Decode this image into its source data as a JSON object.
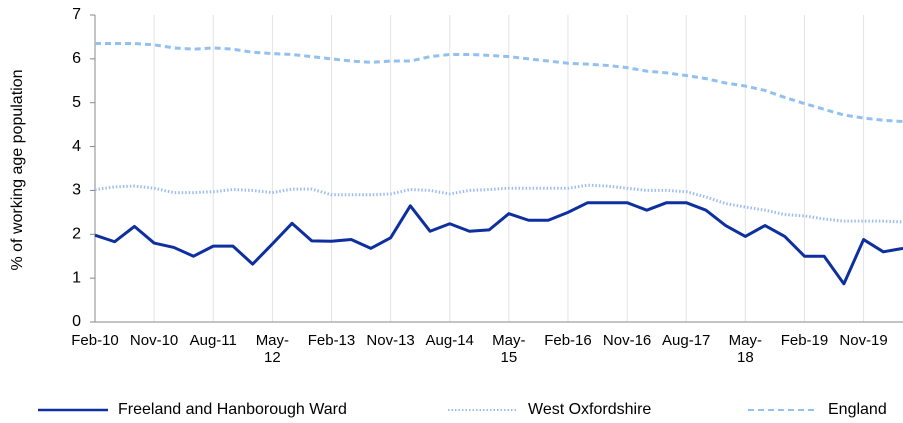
{
  "chart_data": {
    "type": "line",
    "y_label": "% of working age population",
    "categories": [
      "Feb-10",
      null,
      null,
      "Nov-10",
      null,
      null,
      "Aug-11",
      null,
      null,
      "May-\n12",
      null,
      null,
      "Feb-13",
      null,
      null,
      "Nov-13",
      null,
      null,
      "Aug-14",
      null,
      null,
      "May-\n15",
      null,
      null,
      "Feb-16",
      null,
      null,
      "Nov-16",
      null,
      null,
      "Aug-17",
      null,
      null,
      "May-\n18",
      null,
      null,
      "Feb-19",
      null,
      null,
      "Nov-19",
      null,
      null
    ],
    "ylim": [
      0,
      7
    ],
    "yticks": [
      0,
      1,
      2,
      3,
      4,
      5,
      6,
      7
    ],
    "grid": true,
    "legend": "bottom",
    "series": [
      {
        "name": "Freeland and Hanborough Ward",
        "color": "#0d2fa0",
        "line_style": "solid",
        "values": [
          1.98,
          1.83,
          2.18,
          1.8,
          1.7,
          1.5,
          1.73,
          1.73,
          1.32,
          1.78,
          2.25,
          1.85,
          1.84,
          1.88,
          1.68,
          1.92,
          2.65,
          2.07,
          2.24,
          2.07,
          2.1,
          2.47,
          2.32,
          2.32,
          2.5,
          2.72,
          2.72,
          2.72,
          2.55,
          2.72,
          2.72,
          2.55,
          2.2,
          1.95,
          2.2,
          1.95,
          1.5,
          1.5,
          0.87,
          1.88,
          1.6,
          1.68
        ]
      },
      {
        "name": "West Oxfordshire",
        "color": "#9dbdf0",
        "line_style": "dotted",
        "values": [
          3.02,
          3.08,
          3.1,
          3.05,
          2.95,
          2.95,
          2.97,
          3.02,
          3.0,
          2.95,
          3.03,
          3.03,
          2.9,
          2.9,
          2.9,
          2.92,
          3.02,
          3.0,
          2.92,
          3.0,
          3.02,
          3.05,
          3.05,
          3.05,
          3.05,
          3.12,
          3.1,
          3.05,
          3.0,
          3.0,
          2.97,
          2.85,
          2.7,
          2.62,
          2.55,
          2.45,
          2.42,
          2.35,
          2.3,
          2.3,
          2.3,
          2.28
        ]
      },
      {
        "name": "England",
        "color": "#92c1f0",
        "line_style": "dashed",
        "values": [
          6.35,
          6.35,
          6.35,
          6.32,
          6.25,
          6.22,
          6.25,
          6.22,
          6.15,
          6.12,
          6.1,
          6.05,
          6.0,
          5.95,
          5.92,
          5.95,
          5.95,
          6.05,
          6.1,
          6.1,
          6.08,
          6.05,
          6.0,
          5.95,
          5.9,
          5.88,
          5.85,
          5.8,
          5.72,
          5.68,
          5.62,
          5.55,
          5.45,
          5.38,
          5.28,
          5.12,
          4.98,
          4.85,
          4.72,
          4.65,
          4.6,
          4.57
        ]
      }
    ]
  }
}
